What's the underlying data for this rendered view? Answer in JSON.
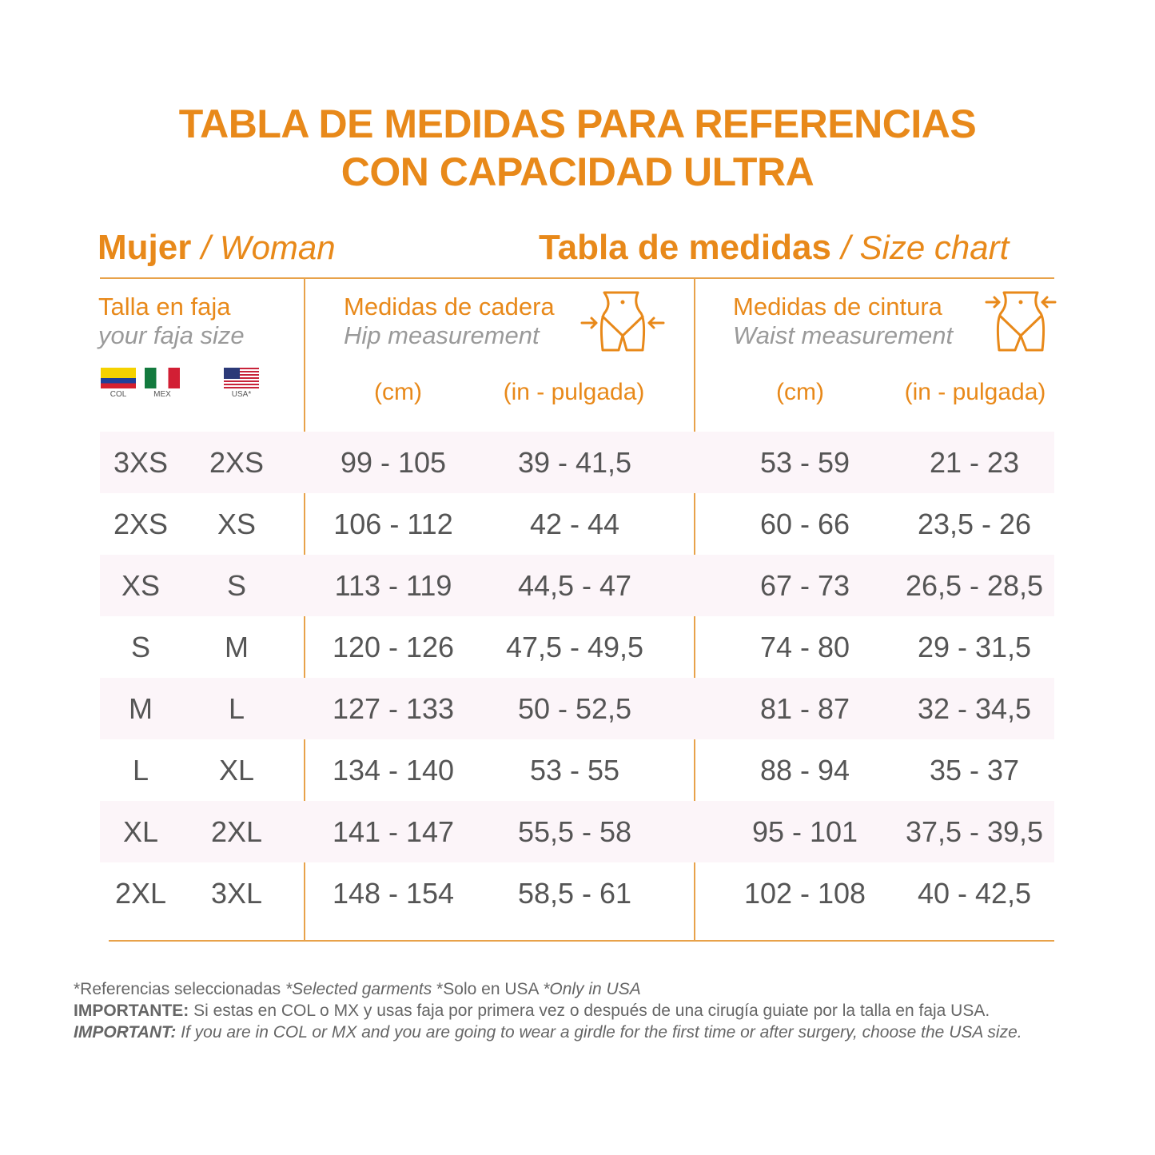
{
  "title": {
    "line1": "TABLA DE MEDIDAS PARA REFERENCIAS",
    "line2": "CON CAPACIDAD ULTRA"
  },
  "left_heading": {
    "es": "Mujer",
    "en": "/ Woman"
  },
  "right_heading": {
    "es": "Tabla de medidas",
    "en": "/ Size chart"
  },
  "size_header": {
    "es": "Talla en faja",
    "en": "your faja size",
    "flags": [
      "COL",
      "MEX",
      "USA*"
    ]
  },
  "hip_header": {
    "es": "Medidas de cadera",
    "en": "Hip measurement",
    "icon": "hip-measure-icon",
    "unit_cm": "(cm)",
    "unit_in": "(in - pulgada)"
  },
  "waist_header": {
    "es": "Medidas de cintura",
    "en": "Waist measurement",
    "icon": "waist-measure-icon",
    "unit_cm": "(cm)",
    "unit_in": "(in - pulgada)"
  },
  "rows": [
    [
      "3XS",
      "2XS",
      "99  -  105",
      "39  -  41,5",
      "53 - 59",
      "21 - 23"
    ],
    [
      "2XS",
      "XS",
      "106 - 112",
      "42 - 44",
      "60 - 66",
      "23,5 - 26"
    ],
    [
      "XS",
      "S",
      "113 - 119",
      "44,5 - 47",
      "67 - 73",
      "26,5 - 28,5"
    ],
    [
      "S",
      "M",
      "120 - 126",
      "47,5 - 49,5",
      "74 - 80",
      "29 - 31,5"
    ],
    [
      "M",
      "L",
      "127 - 133",
      "50 - 52,5",
      "81 - 87",
      "32 - 34,5"
    ],
    [
      "L",
      "XL",
      "134 - 140",
      "53 - 55",
      "88 - 94",
      "35 - 37"
    ],
    [
      "XL",
      "2XL",
      "141 - 147",
      "55,5 - 58",
      "95 - 101",
      "37,5 - 39,5"
    ],
    [
      "2XL",
      "3XL",
      "148 - 154",
      "58,5 - 61",
      "102 - 108",
      "40 - 42,5"
    ]
  ],
  "notes": {
    "line1_a": "*Referencias seleccionadas ",
    "line1_b": "*Selected garments",
    "line1_c": " *Solo en USA ",
    "line1_d": "*Only in USA",
    "line2_label": "IMPORTANTE:",
    "line2_text": " Si estas en COL o MX y usas faja por primera vez o después de una cirugía guiate por la talla en faja USA.",
    "line3_label": "IMPORTANT:",
    "line3_text": " If you are in COL or MX and you are going to wear a girdle for the first time or after surgery, choose the USA size."
  },
  "colors": {
    "accent": "#e8891a",
    "row_alt": "#fcf5f9",
    "text": "#555555"
  }
}
